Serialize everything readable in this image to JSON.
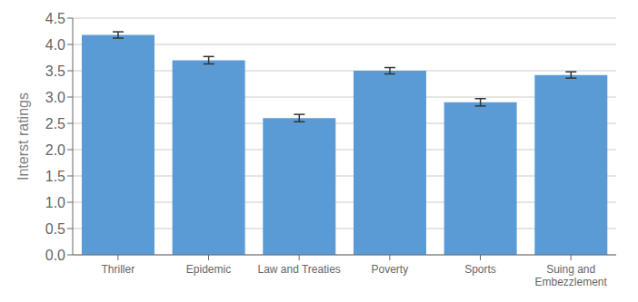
{
  "chart_data": {
    "type": "bar",
    "categories": [
      "Thriller",
      "Epidemic",
      "Law and Treaties",
      "Poverty",
      "Sports",
      "Suing and\nEmbezzlement"
    ],
    "values": [
      4.18,
      3.7,
      2.6,
      3.5,
      2.9,
      3.42
    ],
    "errors": [
      0.06,
      0.07,
      0.07,
      0.06,
      0.07,
      0.06
    ],
    "color": "#5B9BD5",
    "ylabel": "Interst ratings",
    "ylim": [
      0,
      4.5
    ],
    "yticks": [
      {
        "value": 0,
        "label": "0.0"
      },
      0.5,
      {
        "value": 1,
        "label": "1.0"
      },
      1.5,
      {
        "value": 2,
        "label": "2.0"
      },
      2.5,
      {
        "value": 3,
        "label": "3.0"
      },
      3.5,
      {
        "value": 4,
        "label": "4.0"
      },
      4.5
    ],
    "grid": true
  }
}
